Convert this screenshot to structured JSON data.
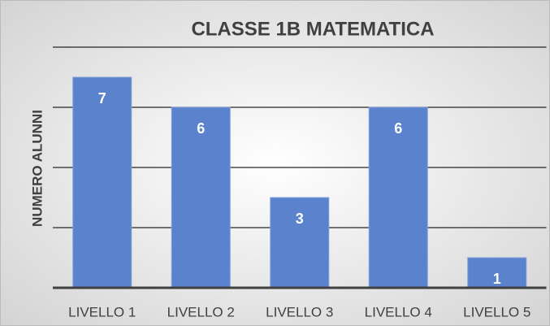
{
  "chart_data": {
    "type": "bar",
    "title": "CLASSE 1B MATEMATICA",
    "y_label": "NUMERO ALUNNI",
    "categories": [
      "LIVELLO 1",
      "LIVELLO 2",
      "LIVELLO 3",
      "LIVELLO 4",
      "LIVELLO 5"
    ],
    "values": [
      7,
      6,
      3,
      6,
      1
    ],
    "color": "#5b82cc",
    "ylim": [
      0,
      8
    ],
    "yticks": [
      0,
      2,
      4,
      6,
      8
    ],
    "grid": true
  }
}
